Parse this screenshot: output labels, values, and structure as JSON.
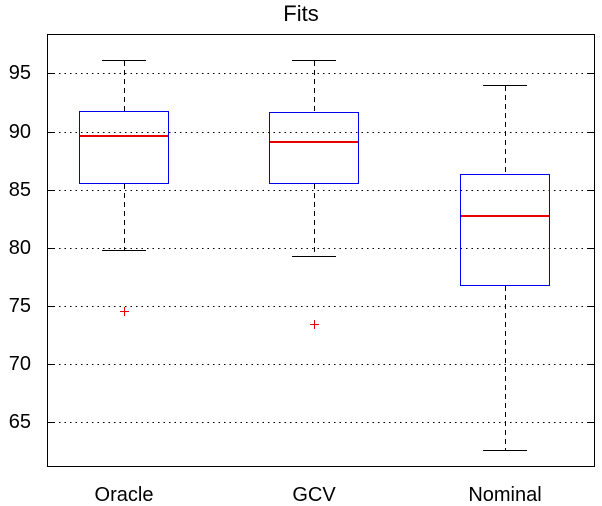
{
  "title": "Fits",
  "chart_data": {
    "type": "boxplot",
    "title": "Fits",
    "categories": [
      "Oracle",
      "GCV",
      "Nominal"
    ],
    "series": [
      {
        "name": "Oracle",
        "whisker_low": 79.8,
        "q1": 85.5,
        "median": 89.7,
        "q3": 91.8,
        "whisker_high": 96.2,
        "outliers": [
          74.5
        ]
      },
      {
        "name": "GCV",
        "whisker_low": 79.3,
        "q1": 85.5,
        "median": 89.2,
        "q3": 91.7,
        "whisker_high": 96.2,
        "outliers": [
          73.4
        ]
      },
      {
        "name": "Nominal",
        "whisker_low": 62.6,
        "q1": 76.7,
        "median": 82.8,
        "q3": 86.3,
        "whisker_high": 94.0,
        "outliers": []
      }
    ],
    "yticks": [
      65,
      70,
      75,
      80,
      85,
      90,
      95
    ],
    "ylim": [
      61.1,
      98.4
    ],
    "xlabel": "",
    "ylabel": "",
    "grid": "horizontal-dotted",
    "legend": "none",
    "colors": {
      "box": "#0000ee",
      "median": "#e80000",
      "outlier": "#e80000",
      "whisker": "#000000",
      "axis": "#000000",
      "background": "#ffffff"
    }
  }
}
